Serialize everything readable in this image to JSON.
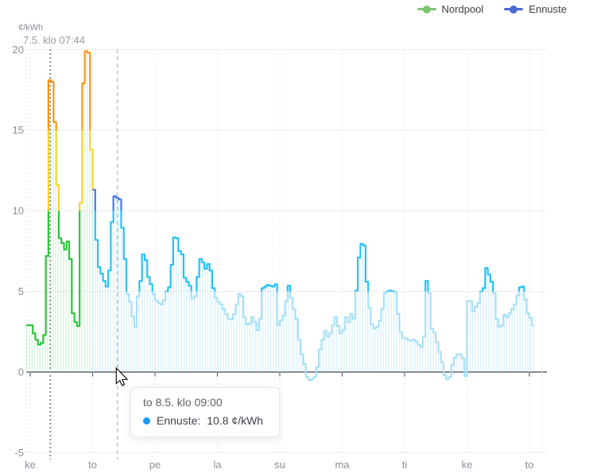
{
  "unit_label": "¢/kWh",
  "legend": {
    "items": [
      {
        "label": "Nordpool",
        "color": "#7cc674"
      },
      {
        "label": "Ennuste",
        "color": "#4a6bd4"
      }
    ]
  },
  "tooltip": {
    "title": "to 8.5. klo 09:00",
    "series_label": "Ennuste:",
    "value_text": "10.8 ¢/kWh",
    "dot_color": "#1e9bf0"
  },
  "chart_data": {
    "type": "line",
    "subtype": "step",
    "title": "",
    "xlabel": "",
    "ylabel": "¢/kWh",
    "ylim": [
      -5,
      20
    ],
    "y_ticks": [
      20,
      15,
      10,
      5,
      0,
      -5
    ],
    "x_labels": [
      "ke",
      "to",
      "pe",
      "la",
      "su",
      "ma",
      "ti",
      "ke",
      "to"
    ],
    "hours_per_tick": 24,
    "grid": true,
    "legend_position": "top-right",
    "now_marker": {
      "label": "7.5. klo 07:44",
      "hour": 7.73
    },
    "hover_marker": {
      "hour": 33.55,
      "cursor_x_hour": 33.1
    },
    "series": [
      {
        "name": "Nordpool",
        "start_hour": 0,
        "bands": [
          {
            "max": 10,
            "color": "#2bc53b"
          },
          {
            "max": 15,
            "color": "#ffd22e"
          },
          {
            "max": 99,
            "color": "#ff9413"
          }
        ],
        "fill_stripe_color": "rgba(70,200,90,0.20)",
        "values": [
          2.9,
          2.4,
          2.0,
          1.7,
          1.8,
          2.3,
          7.2,
          18.1,
          18.0,
          15.5,
          11.6,
          8.3,
          8.0,
          7.6,
          8.1,
          7.0,
          3.65,
          3.1,
          2.85,
          10.5,
          17.9,
          19.9,
          19.8,
          13.8
        ]
      },
      {
        "name": "Ennuste",
        "start_hour": 24,
        "bands": [
          {
            "max": 5,
            "color": "#a9e0f8"
          },
          {
            "max": 10,
            "color": "#27c1f4"
          },
          {
            "max": 99,
            "color": "#4478e8"
          }
        ],
        "fill_stripe_color": "rgba(80,190,240,0.20)",
        "values": [
          11.3,
          8.2,
          6.5,
          6.1,
          5.65,
          5.3,
          6.3,
          9.3,
          10.9,
          10.8,
          10.7,
          8.95,
          7.0,
          4.85,
          4.35,
          3.45,
          2.8,
          4.7,
          5.65,
          7.3,
          6.95,
          5.9,
          5.45,
          4.85,
          4.45,
          4.3,
          4.2,
          4.45,
          5.0,
          5.25,
          6.65,
          8.35,
          8.3,
          7.5,
          7.3,
          5.85,
          5.6,
          5.35,
          4.55,
          4.7,
          5.9,
          7.0,
          6.8,
          6.4,
          6.7,
          6.3,
          5.2,
          4.6,
          4.35,
          4.2,
          3.9,
          3.6,
          3.3,
          3.25,
          3.6,
          4.2,
          4.85,
          4.7,
          3.4,
          2.95,
          3.0,
          3.4,
          3.1,
          2.6,
          3.3,
          5.2,
          5.3,
          5.4,
          5.35,
          5.3,
          5.45,
          2.9,
          3.2,
          3.5,
          4.4,
          5.35,
          4.6,
          3.9,
          3.3,
          2.0,
          1.1,
          0.5,
          -0.3,
          -0.5,
          -0.45,
          -0.3,
          0.3,
          1.4,
          2.0,
          2.55,
          2.2,
          2.4,
          2.9,
          3.4,
          2.85,
          2.4,
          2.6,
          3.4,
          3.1,
          3.6,
          3.3,
          5.05,
          7.1,
          7.95,
          7.85,
          5.6,
          4.0,
          2.95,
          2.7,
          2.8,
          3.2,
          3.9,
          4.9,
          5.0,
          5.05,
          5.0,
          4.95,
          3.6,
          2.5,
          2.1,
          2.1,
          2.0,
          1.95,
          2.0,
          1.9,
          1.7,
          1.55,
          2.2,
          5.65,
          4.9,
          2.7,
          2.45,
          1.85,
          1.25,
          0.6,
          -0.2,
          -0.45,
          -0.3,
          0.45,
          0.9,
          1.1,
          1.1,
          0.85,
          -0.25,
          4.4,
          4.4,
          3.75,
          4.05,
          4.3,
          5.0,
          5.2,
          6.45,
          6.05,
          5.6,
          4.9,
          3.3,
          2.8,
          2.9,
          3.55,
          3.4,
          3.65,
          3.9,
          4.2,
          4.75,
          5.25,
          5.3,
          4.5,
          3.65,
          3.35,
          2.9
        ]
      }
    ],
    "colors": {
      "grid_line": "#e9ecf2",
      "zero_axis": "#5f6470",
      "day_grid": "#e4e7ee",
      "now_line": "#8e8e8e",
      "hover_line": "#b9bec8",
      "tick_label": "#8b8e98"
    }
  }
}
